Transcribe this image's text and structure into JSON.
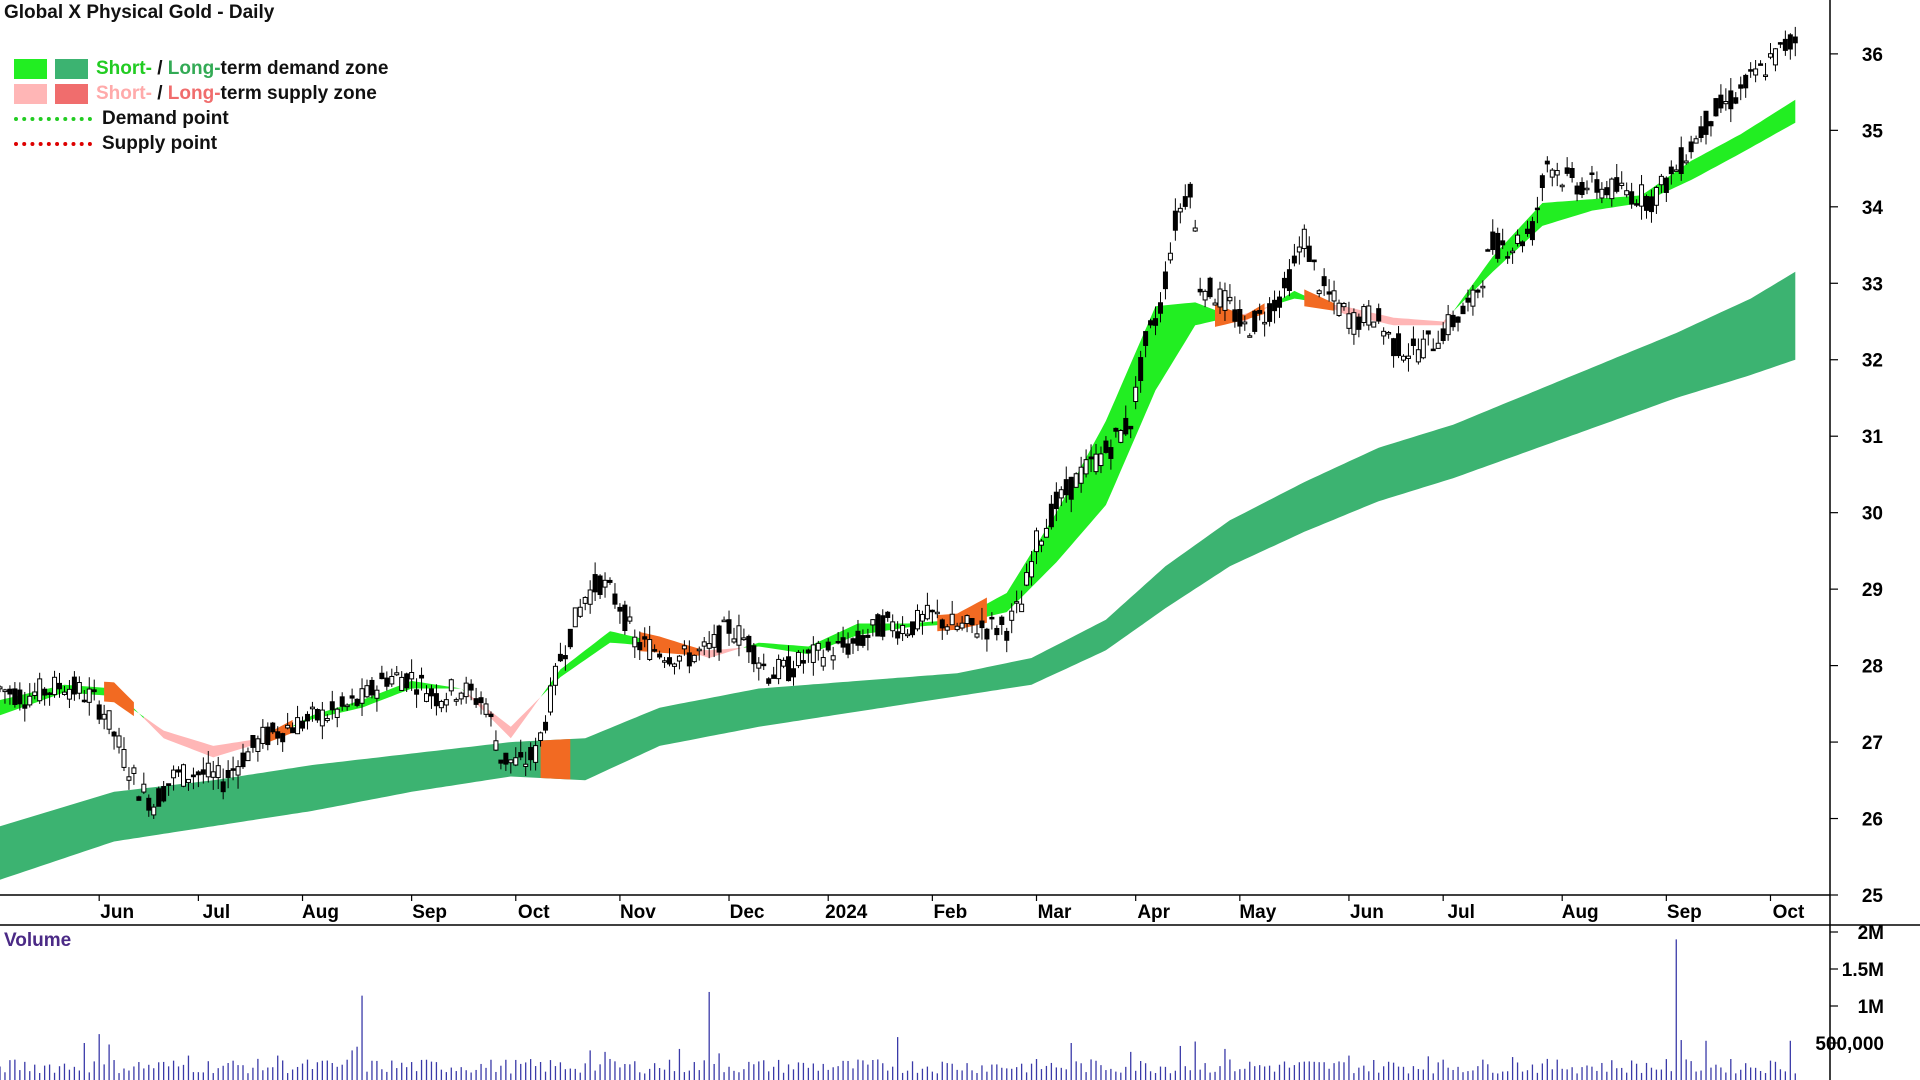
{
  "title": "Global X Physical Gold - Daily",
  "colors": {
    "short_demand": "#22ee22",
    "long_demand": "#3cb371",
    "short_supply": "#ffb6b6",
    "long_supply": "#f06d6d",
    "overlap": "#f26a22",
    "demand_text": "#22cc22",
    "long_demand_text": "#33aa55",
    "supply_text": "#ffaaaa",
    "long_supply_text": "#f06d6d",
    "volume_bar": "#3a3aa8",
    "axis": "#000000"
  },
  "legend": {
    "short_label": "Short-",
    "slash": " / ",
    "long_label": "Long-",
    "demand_zone_rest": "term demand zone",
    "supply_zone_rest": "term supply zone",
    "demand_point": "Demand point",
    "supply_point": "Supply point"
  },
  "volume_label": "Volume",
  "chart_data": {
    "type": "candlestick",
    "title": "Global X Physical Gold - Daily",
    "ylim": [
      25,
      36.6
    ],
    "y_ticks": [
      25,
      26,
      27,
      28,
      29,
      30,
      31,
      32,
      33,
      34,
      35,
      36
    ],
    "x_month_labels": [
      "Jun",
      "Jul",
      "Aug",
      "Sep",
      "Oct",
      "Nov",
      "Dec",
      "2024",
      "Feb",
      "Mar",
      "Apr",
      "May",
      "Jun",
      "Jul",
      "Aug",
      "Sep",
      "Oct"
    ],
    "x_label_positions": [
      7,
      27,
      48,
      70,
      91,
      112,
      134,
      154,
      175,
      196,
      216,
      237,
      259,
      278,
      302,
      323,
      344
    ],
    "x_range": [
      -13,
      356
    ],
    "price_path": [
      [
        -13,
        27.7
      ],
      [
        -8,
        27.6
      ],
      [
        0,
        27.75
      ],
      [
        5,
        27.6
      ],
      [
        8,
        27.4
      ],
      [
        12,
        26.8
      ],
      [
        15,
        26.4
      ],
      [
        18,
        26.2
      ],
      [
        22,
        26.55
      ],
      [
        27,
        26.6
      ],
      [
        32,
        26.5
      ],
      [
        36,
        26.8
      ],
      [
        40,
        27.05
      ],
      [
        45,
        27.2
      ],
      [
        50,
        27.3
      ],
      [
        55,
        27.4
      ],
      [
        60,
        27.55
      ],
      [
        65,
        27.85
      ],
      [
        70,
        27.85
      ],
      [
        75,
        27.6
      ],
      [
        80,
        27.7
      ],
      [
        85,
        27.5
      ],
      [
        88,
        26.8
      ],
      [
        92,
        26.7
      ],
      [
        95,
        26.85
      ],
      [
        97,
        27.3
      ],
      [
        100,
        28.1
      ],
      [
        105,
        28.9
      ],
      [
        108,
        29.1
      ],
      [
        112,
        28.8
      ],
      [
        115,
        28.3
      ],
      [
        120,
        28.2
      ],
      [
        125,
        28.1
      ],
      [
        130,
        28.2
      ],
      [
        134,
        28.5
      ],
      [
        138,
        28.3
      ],
      [
        142,
        27.9
      ],
      [
        146,
        27.95
      ],
      [
        150,
        28.1
      ],
      [
        155,
        28.2
      ],
      [
        160,
        28.3
      ],
      [
        165,
        28.55
      ],
      [
        170,
        28.5
      ],
      [
        175,
        28.65
      ],
      [
        180,
        28.5
      ],
      [
        185,
        28.5
      ],
      [
        190,
        28.5
      ],
      [
        193,
        28.8
      ],
      [
        196,
        29.6
      ],
      [
        200,
        30.1
      ],
      [
        205,
        30.5
      ],
      [
        210,
        30.8
      ],
      [
        215,
        31.2
      ],
      [
        218,
        32.2
      ],
      [
        221,
        32.7
      ],
      [
        224,
        33.8
      ],
      [
        227,
        34.3
      ],
      [
        229,
        33.0
      ],
      [
        232,
        32.85
      ],
      [
        235,
        32.7
      ],
      [
        238,
        32.4
      ],
      [
        242,
        32.6
      ],
      [
        246,
        32.9
      ],
      [
        250,
        33.6
      ],
      [
        253,
        33.0
      ],
      [
        256,
        32.75
      ],
      [
        260,
        32.5
      ],
      [
        264,
        32.6
      ],
      [
        268,
        32.2
      ],
      [
        272,
        32.1
      ],
      [
        276,
        32.25
      ],
      [
        280,
        32.5
      ],
      [
        284,
        32.75
      ],
      [
        288,
        33.5
      ],
      [
        292,
        33.5
      ],
      [
        296,
        33.7
      ],
      [
        299,
        34.6
      ],
      [
        302,
        34.4
      ],
      [
        305,
        34.3
      ],
      [
        310,
        34.25
      ],
      [
        315,
        34.2
      ],
      [
        320,
        34.1
      ],
      [
        324,
        34.4
      ],
      [
        328,
        34.8
      ],
      [
        332,
        35.2
      ],
      [
        336,
        35.4
      ],
      [
        340,
        35.65
      ],
      [
        344,
        35.9
      ],
      [
        347,
        36.1
      ],
      [
        349,
        36.2
      ]
    ],
    "band_series": {
      "short_fast": [
        [
          -13,
          27.55
        ],
        [
          0,
          27.75
        ],
        [
          10,
          27.7
        ],
        [
          20,
          27.05
        ],
        [
          30,
          26.8
        ],
        [
          40,
          27.0
        ],
        [
          50,
          27.35
        ],
        [
          60,
          27.55
        ],
        [
          70,
          27.8
        ],
        [
          80,
          27.7
        ],
        [
          90,
          27.05
        ],
        [
          100,
          27.95
        ],
        [
          110,
          28.45
        ],
        [
          120,
          28.3
        ],
        [
          130,
          28.1
        ],
        [
          140,
          28.3
        ],
        [
          150,
          28.25
        ],
        [
          160,
          28.55
        ],
        [
          170,
          28.55
        ],
        [
          180,
          28.6
        ],
        [
          190,
          28.95
        ],
        [
          200,
          30.0
        ],
        [
          210,
          31.2
        ],
        [
          220,
          32.7
        ],
        [
          228,
          32.75
        ],
        [
          238,
          32.5
        ],
        [
          248,
          32.9
        ],
        [
          258,
          32.6
        ],
        [
          268,
          32.45
        ],
        [
          278,
          32.45
        ],
        [
          288,
          33.35
        ],
        [
          298,
          34.05
        ],
        [
          308,
          34.1
        ],
        [
          318,
          34.15
        ],
        [
          328,
          34.6
        ],
        [
          338,
          34.95
        ],
        [
          349,
          35.4
        ]
      ],
      "short_slow": [
        [
          -13,
          27.35
        ],
        [
          0,
          27.65
        ],
        [
          10,
          27.6
        ],
        [
          20,
          27.15
        ],
        [
          30,
          26.95
        ],
        [
          40,
          27.05
        ],
        [
          50,
          27.3
        ],
        [
          60,
          27.45
        ],
        [
          70,
          27.7
        ],
        [
          80,
          27.7
        ],
        [
          90,
          27.2
        ],
        [
          100,
          27.85
        ],
        [
          110,
          28.3
        ],
        [
          120,
          28.25
        ],
        [
          130,
          28.2
        ],
        [
          140,
          28.25
        ],
        [
          150,
          28.15
        ],
        [
          160,
          28.4
        ],
        [
          170,
          28.5
        ],
        [
          180,
          28.55
        ],
        [
          190,
          28.7
        ],
        [
          200,
          29.35
        ],
        [
          210,
          30.1
        ],
        [
          220,
          31.6
        ],
        [
          228,
          32.45
        ],
        [
          238,
          32.6
        ],
        [
          248,
          32.8
        ],
        [
          258,
          32.7
        ],
        [
          268,
          32.55
        ],
        [
          278,
          32.5
        ],
        [
          288,
          33.15
        ],
        [
          298,
          33.75
        ],
        [
          308,
          33.95
        ],
        [
          318,
          34.05
        ],
        [
          328,
          34.35
        ],
        [
          338,
          34.7
        ],
        [
          349,
          35.1
        ]
      ],
      "long_fast": [
        [
          -13,
          25.9
        ],
        [
          10,
          26.35
        ],
        [
          30,
          26.5
        ],
        [
          50,
          26.7
        ],
        [
          70,
          26.85
        ],
        [
          90,
          27.0
        ],
        [
          105,
          27.05
        ],
        [
          120,
          27.45
        ],
        [
          140,
          27.7
        ],
        [
          160,
          27.8
        ],
        [
          180,
          27.9
        ],
        [
          195,
          28.1
        ],
        [
          210,
          28.6
        ],
        [
          222,
          29.3
        ],
        [
          235,
          29.9
        ],
        [
          250,
          30.4
        ],
        [
          265,
          30.85
        ],
        [
          280,
          31.15
        ],
        [
          295,
          31.55
        ],
        [
          310,
          31.95
        ],
        [
          325,
          32.35
        ],
        [
          340,
          32.8
        ],
        [
          349,
          33.15
        ]
      ],
      "long_slow": [
        [
          -13,
          25.2
        ],
        [
          10,
          25.7
        ],
        [
          30,
          25.9
        ],
        [
          50,
          26.1
        ],
        [
          70,
          26.35
        ],
        [
          90,
          26.55
        ],
        [
          105,
          26.5
        ],
        [
          120,
          26.95
        ],
        [
          140,
          27.2
        ],
        [
          160,
          27.4
        ],
        [
          180,
          27.6
        ],
        [
          195,
          27.75
        ],
        [
          210,
          28.2
        ],
        [
          222,
          28.75
        ],
        [
          235,
          29.3
        ],
        [
          250,
          29.75
        ],
        [
          265,
          30.15
        ],
        [
          280,
          30.45
        ],
        [
          295,
          30.8
        ],
        [
          310,
          31.15
        ],
        [
          325,
          31.5
        ],
        [
          340,
          31.8
        ],
        [
          349,
          32.0
        ]
      ]
    },
    "volume": {
      "ylim": [
        0,
        2000000
      ],
      "y_ticks": [
        500000,
        1000000,
        1500000,
        2000000
      ],
      "y_tick_labels": [
        "500,000",
        "1M",
        "1.5M",
        "2M"
      ],
      "spikes": [
        [
          4,
          500000
        ],
        [
          7,
          620000
        ],
        [
          9,
          480000
        ],
        [
          25,
          330000
        ],
        [
          43,
          330000
        ],
        [
          58,
          400000
        ],
        [
          59,
          450000
        ],
        [
          60,
          1140000
        ],
        [
          106,
          400000
        ],
        [
          109,
          380000
        ],
        [
          124,
          420000
        ],
        [
          130,
          1190000
        ],
        [
          132,
          360000
        ],
        [
          168,
          580000
        ],
        [
          203,
          500000
        ],
        [
          215,
          380000
        ],
        [
          225,
          460000
        ],
        [
          228,
          520000
        ],
        [
          234,
          420000
        ],
        [
          259,
          330000
        ],
        [
          275,
          320000
        ],
        [
          292,
          310000
        ],
        [
          325,
          1900000
        ],
        [
          326,
          540000
        ],
        [
          331,
          530000
        ],
        [
          348,
          530000
        ]
      ],
      "base": 220000
    }
  }
}
